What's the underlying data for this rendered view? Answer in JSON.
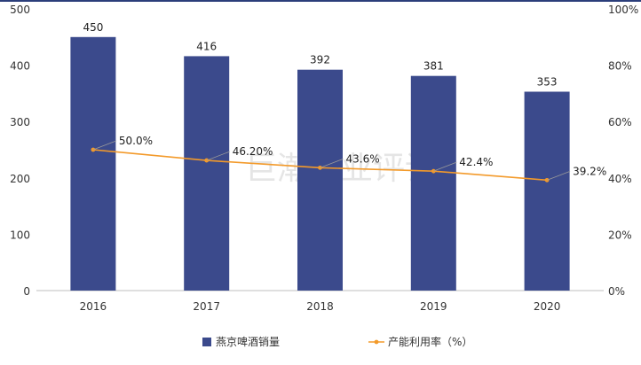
{
  "colors": {
    "bar": "#3b4a8c",
    "line": "#f39a2a",
    "axis_text": "#333333",
    "label_text": "#222222",
    "axis_line": "#bfbfbf",
    "callout": "#9a9a9a",
    "watermark": "#d0d0d0",
    "top_rule": "#2b3e7a"
  },
  "watermark": "巨潮商业评论",
  "chart_data": {
    "type": "bar",
    "categories": [
      "2016",
      "2017",
      "2018",
      "2019",
      "2020"
    ],
    "series": [
      {
        "name": "燕京啤酒销量",
        "type": "bar",
        "axis": "left",
        "values": [
          450,
          416,
          392,
          381,
          353
        ],
        "labels": [
          "450",
          "416",
          "392",
          "381",
          "353"
        ]
      },
      {
        "name": "产能利用率（%）",
        "type": "line",
        "axis": "right",
        "values": [
          50.0,
          46.2,
          43.6,
          42.4,
          39.2
        ],
        "labels": [
          "50.0%",
          "46.20%",
          "43.6%",
          "42.4%",
          "39.2%"
        ]
      }
    ],
    "y_left": {
      "ylim": [
        0,
        500
      ],
      "ticks": [
        "0",
        "100",
        "200",
        "300",
        "400",
        "500"
      ]
    },
    "y_right": {
      "ylim": [
        0,
        100
      ],
      "ticks": [
        "0%",
        "20%",
        "40%",
        "60%",
        "80%",
        "100%"
      ]
    },
    "grid": false,
    "legend_position": "bottom",
    "title": "",
    "xlabel": "",
    "ylabel": ""
  }
}
